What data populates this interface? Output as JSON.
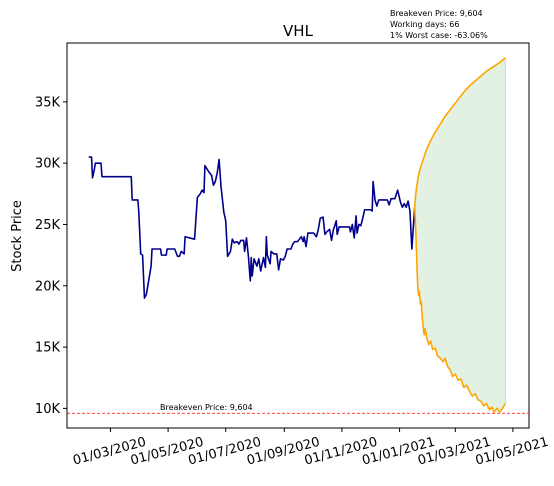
{
  "chart_data": {
    "type": "line",
    "title": "VHL",
    "ylabel": "Stock Price",
    "xlabel": "",
    "ylim": [
      8400,
      39800
    ],
    "xlim": [
      "2020-01-15",
      "2021-05-18"
    ],
    "grid": false,
    "info_lines": [
      "Breakeven Price: 9,604",
      "Working days: 66",
      "1% Worst case: -63.06%"
    ],
    "x_ticks": [
      {
        "date": "2020-03-01",
        "label": "01/03/2020"
      },
      {
        "date": "2020-05-01",
        "label": "01/05/2020"
      },
      {
        "date": "2020-07-01",
        "label": "01/07/2020"
      },
      {
        "date": "2020-09-01",
        "label": "01/09/2020"
      },
      {
        "date": "2020-11-01",
        "label": "01/11/2020"
      },
      {
        "date": "2021-01-01",
        "label": "01/01/2021"
      },
      {
        "date": "2021-03-01",
        "label": "01/03/2021"
      },
      {
        "date": "2021-05-01",
        "label": "01/05/2021"
      }
    ],
    "y_ticks": [
      {
        "value": 10000,
        "label": "10K"
      },
      {
        "value": 15000,
        "label": "15K"
      },
      {
        "value": 20000,
        "label": "20K"
      },
      {
        "value": 25000,
        "label": "25K"
      },
      {
        "value": 30000,
        "label": "30K"
      },
      {
        "value": 35000,
        "label": "35K"
      }
    ],
    "breakeven": {
      "value": 9604,
      "label": "Breakeven Price: 9,604",
      "color": "#ff0000"
    },
    "colors": {
      "history": "#00008b",
      "projection": "#ffa500",
      "band": "#e3f1e3",
      "band_edge": "#c5dfc5"
    },
    "series": [
      {
        "role": "history",
        "points": [
          [
            "2020-02-07",
            30500
          ],
          [
            "2020-02-10",
            30500
          ],
          [
            "2020-02-11",
            28800
          ],
          [
            "2020-02-13",
            29500
          ],
          [
            "2020-02-14",
            30000
          ],
          [
            "2020-02-20",
            30000
          ],
          [
            "2020-02-21",
            28900
          ],
          [
            "2020-03-23",
            28900
          ],
          [
            "2020-03-24",
            27000
          ],
          [
            "2020-03-30",
            27000
          ],
          [
            "2020-03-31",
            26000
          ],
          [
            "2020-04-02",
            22600
          ],
          [
            "2020-04-04",
            22500
          ],
          [
            "2020-04-06",
            19000
          ],
          [
            "2020-04-08",
            19300
          ],
          [
            "2020-04-10",
            20200
          ],
          [
            "2020-04-13",
            21600
          ],
          [
            "2020-04-14",
            23000
          ],
          [
            "2020-04-23",
            23000
          ],
          [
            "2020-04-24",
            22500
          ],
          [
            "2020-04-29",
            22500
          ],
          [
            "2020-04-30",
            23000
          ],
          [
            "2020-05-08",
            23000
          ],
          [
            "2020-05-11",
            22400
          ],
          [
            "2020-05-13",
            22400
          ],
          [
            "2020-05-15",
            22800
          ],
          [
            "2020-05-18",
            22600
          ],
          [
            "2020-05-19",
            24000
          ],
          [
            "2020-05-29",
            23800
          ],
          [
            "2020-06-01",
            27200
          ],
          [
            "2020-06-04",
            27500
          ],
          [
            "2020-06-06",
            27800
          ],
          [
            "2020-06-08",
            27600
          ],
          [
            "2020-06-09",
            29800
          ],
          [
            "2020-06-13",
            29300
          ],
          [
            "2020-06-16",
            29000
          ],
          [
            "2020-06-18",
            28200
          ],
          [
            "2020-06-20",
            28500
          ],
          [
            "2020-06-22",
            29200
          ],
          [
            "2020-06-24",
            30300
          ],
          [
            "2020-06-26",
            28100
          ],
          [
            "2020-06-29",
            26000
          ],
          [
            "2020-07-01",
            25300
          ],
          [
            "2020-07-03",
            22400
          ],
          [
            "2020-07-06",
            22800
          ],
          [
            "2020-07-08",
            23800
          ],
          [
            "2020-07-10",
            23500
          ],
          [
            "2020-07-13",
            23600
          ],
          [
            "2020-07-15",
            23400
          ],
          [
            "2020-07-17",
            23700
          ],
          [
            "2020-07-20",
            23700
          ],
          [
            "2020-07-21",
            22800
          ],
          [
            "2020-07-23",
            23900
          ],
          [
            "2020-07-25",
            22400
          ],
          [
            "2020-07-27",
            20400
          ],
          [
            "2020-07-28",
            22300
          ],
          [
            "2020-07-29",
            20800
          ],
          [
            "2020-07-31",
            22200
          ],
          [
            "2020-08-03",
            21600
          ],
          [
            "2020-08-05",
            22200
          ],
          [
            "2020-08-07",
            21200
          ],
          [
            "2020-08-10",
            22300
          ],
          [
            "2020-08-12",
            21500
          ],
          [
            "2020-08-13",
            24000
          ],
          [
            "2020-08-14",
            22500
          ],
          [
            "2020-08-17",
            21800
          ],
          [
            "2020-08-18",
            22800
          ],
          [
            "2020-08-21",
            22600
          ],
          [
            "2020-08-24",
            22600
          ],
          [
            "2020-08-26",
            21300
          ],
          [
            "2020-08-28",
            22200
          ],
          [
            "2020-08-31",
            22100
          ],
          [
            "2020-09-02",
            22400
          ],
          [
            "2020-09-04",
            23000
          ],
          [
            "2020-09-08",
            23000
          ],
          [
            "2020-09-10",
            23400
          ],
          [
            "2020-09-12",
            23600
          ],
          [
            "2020-09-15",
            23600
          ],
          [
            "2020-09-17",
            23800
          ],
          [
            "2020-09-19",
            24000
          ],
          [
            "2020-09-21",
            23600
          ],
          [
            "2020-09-22",
            24000
          ],
          [
            "2020-09-24",
            23200
          ],
          [
            "2020-09-26",
            24300
          ],
          [
            "2020-10-02",
            24300
          ],
          [
            "2020-10-05",
            24000
          ],
          [
            "2020-10-07",
            24600
          ],
          [
            "2020-10-09",
            25500
          ],
          [
            "2020-10-12",
            25600
          ],
          [
            "2020-10-14",
            24200
          ],
          [
            "2020-10-16",
            24400
          ],
          [
            "2020-10-19",
            24600
          ],
          [
            "2020-10-21",
            23700
          ],
          [
            "2020-10-23",
            24600
          ],
          [
            "2020-10-24",
            24800
          ],
          [
            "2020-10-26",
            25300
          ],
          [
            "2020-10-27",
            24200
          ],
          [
            "2020-10-29",
            24800
          ],
          [
            "2020-11-09",
            24800
          ],
          [
            "2020-11-10",
            24400
          ],
          [
            "2020-11-12",
            25000
          ],
          [
            "2020-11-14",
            23900
          ],
          [
            "2020-11-16",
            25700
          ],
          [
            "2020-11-17",
            24300
          ],
          [
            "2020-11-19",
            25000
          ],
          [
            "2020-11-21",
            24900
          ],
          [
            "2020-11-23",
            25500
          ],
          [
            "2020-11-25",
            26200
          ],
          [
            "2020-12-01",
            26200
          ],
          [
            "2020-12-03",
            26100
          ],
          [
            "2020-12-04",
            28500
          ],
          [
            "2020-12-06",
            27000
          ],
          [
            "2020-12-08",
            26500
          ],
          [
            "2020-12-10",
            27000
          ],
          [
            "2020-12-19",
            27000
          ],
          [
            "2020-12-21",
            26600
          ],
          [
            "2020-12-23",
            27100
          ],
          [
            "2020-12-27",
            27100
          ],
          [
            "2020-12-30",
            27800
          ],
          [
            "2021-01-02",
            26800
          ],
          [
            "2021-01-04",
            26400
          ],
          [
            "2021-01-06",
            26700
          ],
          [
            "2021-01-08",
            26400
          ],
          [
            "2021-01-10",
            26900
          ],
          [
            "2021-01-12",
            26100
          ],
          [
            "2021-01-14",
            23000
          ],
          [
            "2021-01-17",
            26400
          ]
        ]
      },
      {
        "role": "projection-upper",
        "points": [
          [
            "2021-01-17",
            26400
          ],
          [
            "2021-01-18",
            27400
          ],
          [
            "2021-01-19",
            28000
          ],
          [
            "2021-01-21",
            29000
          ],
          [
            "2021-01-23",
            29600
          ],
          [
            "2021-01-26",
            30300
          ],
          [
            "2021-01-29",
            31000
          ],
          [
            "2021-02-02",
            31700
          ],
          [
            "2021-02-06",
            32300
          ],
          [
            "2021-02-10",
            32800
          ],
          [
            "2021-02-14",
            33300
          ],
          [
            "2021-02-18",
            33800
          ],
          [
            "2021-02-23",
            34300
          ],
          [
            "2021-02-28",
            34800
          ],
          [
            "2021-03-05",
            35300
          ],
          [
            "2021-03-10",
            35800
          ],
          [
            "2021-03-16",
            36300
          ],
          [
            "2021-03-22",
            36700
          ],
          [
            "2021-03-28",
            37100
          ],
          [
            "2021-04-03",
            37500
          ],
          [
            "2021-04-09",
            37800
          ],
          [
            "2021-04-15",
            38100
          ],
          [
            "2021-04-20",
            38400
          ],
          [
            "2021-04-23",
            38600
          ]
        ]
      },
      {
        "role": "projection-lower",
        "points": [
          [
            "2021-01-17",
            26400
          ],
          [
            "2021-01-18",
            24800
          ],
          [
            "2021-01-19",
            22600
          ],
          [
            "2021-01-20",
            20300
          ],
          [
            "2021-01-21",
            19200
          ],
          [
            "2021-01-22",
            19500
          ],
          [
            "2021-01-23",
            18500
          ],
          [
            "2021-01-24",
            18700
          ],
          [
            "2021-01-25",
            17400
          ],
          [
            "2021-01-27",
            16000
          ],
          [
            "2021-01-28",
            16500
          ],
          [
            "2021-01-30",
            15700
          ],
          [
            "2021-02-01",
            15200
          ],
          [
            "2021-02-03",
            15500
          ],
          [
            "2021-02-05",
            14800
          ],
          [
            "2021-02-08",
            14900
          ],
          [
            "2021-02-10",
            14300
          ],
          [
            "2021-02-13",
            14100
          ],
          [
            "2021-02-16",
            13800
          ],
          [
            "2021-02-18",
            14100
          ],
          [
            "2021-02-21",
            13400
          ],
          [
            "2021-02-24",
            13100
          ],
          [
            "2021-02-26",
            12600
          ],
          [
            "2021-03-01",
            12800
          ],
          [
            "2021-03-04",
            12300
          ],
          [
            "2021-03-07",
            12400
          ],
          [
            "2021-03-10",
            11700
          ],
          [
            "2021-03-13",
            11900
          ],
          [
            "2021-03-16",
            11400
          ],
          [
            "2021-03-19",
            11000
          ],
          [
            "2021-03-22",
            11200
          ],
          [
            "2021-03-25",
            10700
          ],
          [
            "2021-03-28",
            10600
          ],
          [
            "2021-03-31",
            10200
          ],
          [
            "2021-04-03",
            10400
          ],
          [
            "2021-04-06",
            9900
          ],
          [
            "2021-04-09",
            10100
          ],
          [
            "2021-04-11",
            9700
          ],
          [
            "2021-04-14",
            10000
          ],
          [
            "2021-04-17",
            9700
          ],
          [
            "2021-04-20",
            10000
          ],
          [
            "2021-04-23",
            10400
          ]
        ]
      }
    ]
  }
}
